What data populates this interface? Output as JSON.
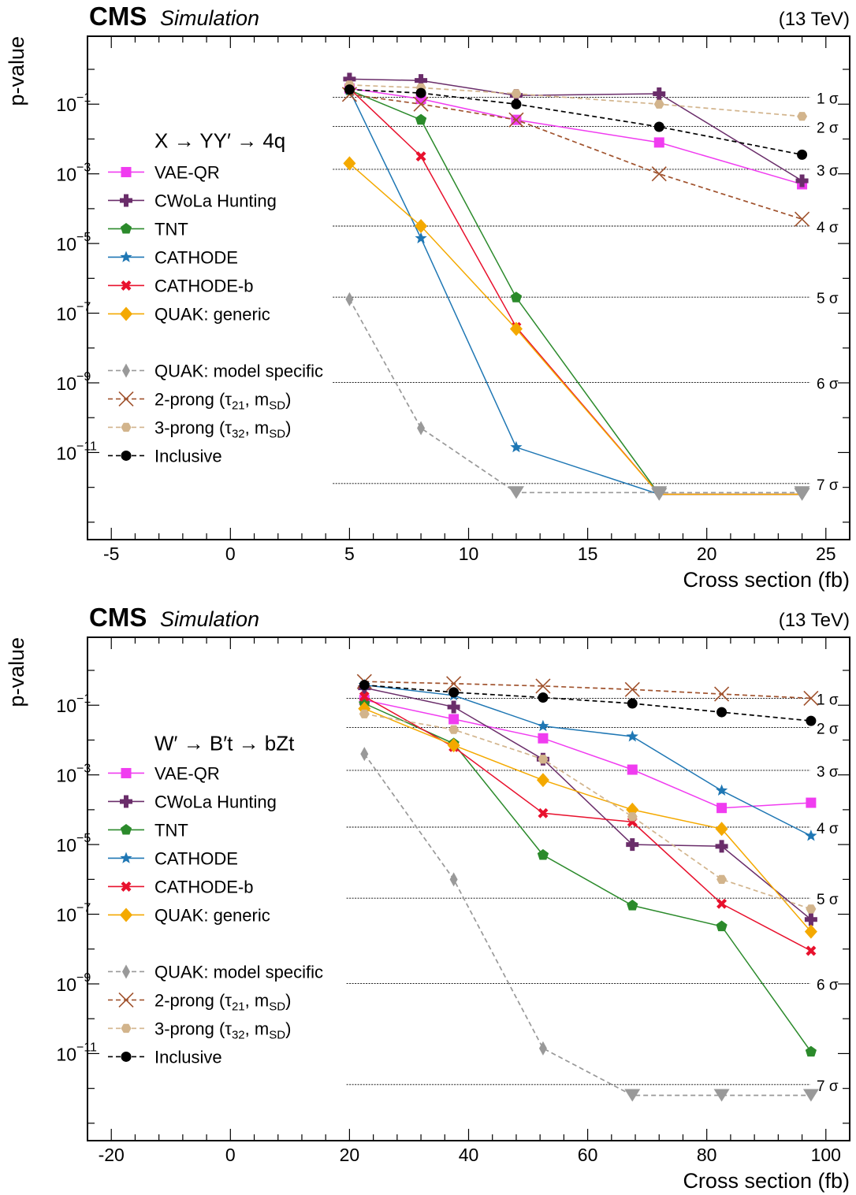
{
  "charts": [
    {
      "id": "top",
      "header": {
        "experiment": "CMS",
        "status": "Simulation",
        "energy": "(13 TeV)"
      },
      "process": "X → YY′ → 4q",
      "xlabel": "Cross section (fb)",
      "ylabel": "p-value",
      "xlim": [
        -6,
        26
      ],
      "ylim_log10": [
        -13.5,
        0.95
      ],
      "xticks": [
        -5,
        0,
        5,
        10,
        15,
        20,
        25
      ],
      "xtick_labels": [
        "-5",
        "0",
        "5",
        "10",
        "15",
        "20",
        "25"
      ],
      "ytick_exps": [
        -1,
        -3,
        -5,
        -7,
        -9,
        -11
      ],
      "ytick_labels": [
        "10",
        "10",
        "10",
        "10",
        "10",
        "10"
      ],
      "ytick_sups": [
        "−1",
        "−3",
        "−5",
        "−7",
        "−9",
        "−11"
      ],
      "sigma_lines": [
        {
          "label": "1 σ",
          "log10p": -0.8
        },
        {
          "label": "2 σ",
          "log10p": -1.64
        },
        {
          "label": "3 σ",
          "log10p": -2.87
        },
        {
          "label": "4 σ",
          "log10p": -4.5
        },
        {
          "label": "5 σ",
          "log10p": -6.54
        },
        {
          "label": "6 σ",
          "log10p": -8.99
        },
        {
          "label": "7 σ",
          "log10p": -11.89
        }
      ],
      "sigma_line_xstart": 4.3,
      "legend": [
        {
          "label": "VAE-QR"
        },
        {
          "label": "CWoLa Hunting"
        },
        {
          "label": "TNT"
        },
        {
          "label": "CATHODE"
        },
        {
          "label": "CATHODE-b"
        },
        {
          "label": "QUAK: generic"
        },
        {
          "label": ""
        },
        {
          "label": "QUAK: model specific"
        },
        {
          "label": "2-prong (τ",
          "sub": "21",
          "mid": ", m",
          "sub2": "SD",
          "end": ")"
        },
        {
          "label": "3-prong (τ",
          "sub": "32",
          "mid": ", m",
          "sub2": "SD",
          "end": ")"
        },
        {
          "label": "Inclusive"
        }
      ],
      "chart_data": {
        "type": "line",
        "yscale": "log",
        "series": [
          {
            "name": "VAE-QR",
            "color": "#f03cf0",
            "dash": "",
            "marker": "square",
            "x": [
              5,
              8,
              12,
              18,
              24
            ],
            "log10p": [
              -0.55,
              -0.85,
              -1.45,
              -2.1,
              -3.3
            ]
          },
          {
            "name": "CWoLa Hunting",
            "color": "#6a2d6a",
            "dash": "",
            "marker": "plus",
            "x": [
              5,
              8,
              12,
              18,
              24
            ],
            "log10p": [
              -0.28,
              -0.32,
              -0.75,
              -0.7,
              -3.2
            ]
          },
          {
            "name": "TNT",
            "color": "#2b8a2b",
            "dash": "",
            "marker": "pentagon",
            "x": [
              5,
              8,
              12,
              18,
              24
            ],
            "log10p": [
              -0.6,
              -1.45,
              -6.55,
              -12.2,
              -12.2
            ]
          },
          {
            "name": "CATHODE",
            "color": "#1f77b4",
            "dash": "",
            "marker": "star",
            "x": [
              5,
              8,
              12,
              18,
              24
            ],
            "log10p": [
              -0.6,
              -4.85,
              -10.85,
              -12.2,
              -12.2
            ]
          },
          {
            "name": "CATHODE-b",
            "color": "#e8112d",
            "dash": "",
            "marker": "x",
            "x": [
              5,
              8,
              12,
              18,
              24
            ],
            "log10p": [
              -0.55,
              -2.5,
              -7.4,
              -12.2,
              -12.2
            ]
          },
          {
            "name": "QUAK: generic",
            "color": "#f4a900",
            "dash": "",
            "marker": "diamond",
            "x": [
              5,
              8,
              12,
              18,
              24
            ],
            "log10p": [
              -2.7,
              -4.5,
              -7.45,
              -12.2,
              -12.2
            ]
          },
          {
            "name": "QUAK: model specific",
            "color": "#999999",
            "dash": "6,4",
            "marker": "thindiamond",
            "x": [
              5,
              8,
              12,
              18,
              24
            ],
            "log10p": [
              -6.6,
              -10.3,
              -12.15,
              -12.15,
              -12.15
            ]
          },
          {
            "name": "2-prong (τ21, mSD)",
            "color": "#a0522d",
            "dash": "6,4",
            "marker": "bigx",
            "x": [
              5,
              8,
              12,
              18,
              24
            ],
            "log10p": [
              -0.72,
              -1.0,
              -1.45,
              -3.0,
              -4.3
            ]
          },
          {
            "name": "3-prong (τ32, mSD)",
            "color": "#d2b48c",
            "dash": "6,4",
            "marker": "hexagon",
            "x": [
              5,
              8,
              12,
              18,
              24
            ],
            "log10p": [
              -0.45,
              -0.53,
              -0.7,
              -1.0,
              -1.35
            ]
          },
          {
            "name": "Inclusive",
            "color": "#000000",
            "dash": "6,4",
            "marker": "circle",
            "x": [
              5,
              8,
              12,
              18,
              24
            ],
            "log10p": [
              -0.58,
              -0.68,
              -1.0,
              -1.65,
              -2.45
            ]
          }
        ]
      }
    },
    {
      "id": "bottom",
      "header": {
        "experiment": "CMS",
        "status": "Simulation",
        "energy": "(13 TeV)"
      },
      "process": "W′ → B′t → bZt",
      "xlabel": "Cross section (fb)",
      "ylabel": "p-value",
      "xlim": [
        -24,
        104
      ],
      "ylim_log10": [
        -13.5,
        0.95
      ],
      "xticks": [
        -20,
        0,
        20,
        40,
        60,
        80,
        100
      ],
      "xtick_labels": [
        "-20",
        "0",
        "20",
        "40",
        "60",
        "80",
        "100"
      ],
      "ytick_exps": [
        -1,
        -3,
        -5,
        -7,
        -9,
        -11
      ],
      "ytick_labels": [
        "10",
        "10",
        "10",
        "10",
        "10",
        "10"
      ],
      "ytick_sups": [
        "−1",
        "−3",
        "−5",
        "−7",
        "−9",
        "−11"
      ],
      "sigma_lines": [
        {
          "label": "1 σ",
          "log10p": -0.8
        },
        {
          "label": "2 σ",
          "log10p": -1.64
        },
        {
          "label": "3 σ",
          "log10p": -2.87
        },
        {
          "label": "4 σ",
          "log10p": -4.5
        },
        {
          "label": "5 σ",
          "log10p": -6.54
        },
        {
          "label": "6 σ",
          "log10p": -8.99
        },
        {
          "label": "7 σ",
          "log10p": -11.89
        }
      ],
      "sigma_line_xstart": 19.5,
      "legend": [
        {
          "label": "VAE-QR"
        },
        {
          "label": "CWoLa Hunting"
        },
        {
          "label": "TNT"
        },
        {
          "label": "CATHODE"
        },
        {
          "label": "CATHODE-b"
        },
        {
          "label": "QUAK: generic"
        },
        {
          "label": ""
        },
        {
          "label": "QUAK: model specific"
        },
        {
          "label": "2-prong (τ",
          "sub": "21",
          "mid": ", m",
          "sub2": "SD",
          "end": ")"
        },
        {
          "label": "3-prong (τ",
          "sub": "32",
          "mid": ", m",
          "sub2": "SD",
          "end": ")"
        },
        {
          "label": "Inclusive"
        }
      ],
      "chart_data": {
        "type": "line",
        "yscale": "log",
        "series": [
          {
            "name": "VAE-QR",
            "color": "#f03cf0",
            "dash": "",
            "marker": "square",
            "x": [
              22.5,
              37.5,
              52.5,
              67.5,
              82.5,
              97.5
            ],
            "log10p": [
              -0.85,
              -1.4,
              -1.95,
              -2.85,
              -3.95,
              -3.8
            ]
          },
          {
            "name": "CWoLa Hunting",
            "color": "#6a2d6a",
            "dash": "",
            "marker": "plus",
            "x": [
              22.5,
              37.5,
              52.5,
              67.5,
              82.5,
              97.5
            ],
            "log10p": [
              -0.5,
              -1.05,
              -2.55,
              -5.0,
              -5.05,
              -7.15
            ]
          },
          {
            "name": "TNT",
            "color": "#2b8a2b",
            "dash": "",
            "marker": "pentagon",
            "x": [
              22.5,
              37.5,
              52.5,
              67.5,
              82.5,
              97.5
            ],
            "log10p": [
              -0.95,
              -2.1,
              -5.3,
              -6.75,
              -7.35,
              -10.95
            ]
          },
          {
            "name": "CATHODE",
            "color": "#1f77b4",
            "dash": "",
            "marker": "star",
            "x": [
              22.5,
              37.5,
              52.5,
              67.5,
              82.5,
              97.5
            ],
            "log10p": [
              -0.42,
              -0.72,
              -1.6,
              -1.9,
              -3.45,
              -4.75
            ]
          },
          {
            "name": "CATHODE-b",
            "color": "#e8112d",
            "dash": "",
            "marker": "x",
            "x": [
              22.5,
              37.5,
              52.5,
              67.5,
              82.5,
              97.5
            ],
            "log10p": [
              -0.75,
              -2.2,
              -4.1,
              -4.35,
              -6.7,
              -8.05
            ]
          },
          {
            "name": "QUAK: generic",
            "color": "#f4a900",
            "dash": "",
            "marker": "diamond",
            "x": [
              22.5,
              37.5,
              52.5,
              67.5,
              82.5,
              97.5
            ],
            "log10p": [
              -1.1,
              -2.15,
              -3.15,
              -4.0,
              -4.55,
              -7.5
            ]
          },
          {
            "name": "QUAK: model specific",
            "color": "#999999",
            "dash": "6,4",
            "marker": "thindiamond",
            "x": [
              22.5,
              37.5,
              52.5,
              67.5,
              82.5,
              97.5
            ],
            "log10p": [
              -2.4,
              -6.0,
              -10.85,
              -12.2,
              -12.2,
              -12.2
            ]
          },
          {
            "name": "2-prong (τ21, mSD)",
            "color": "#a0522d",
            "dash": "6,4",
            "marker": "bigx",
            "x": [
              22.5,
              37.5,
              52.5,
              67.5,
              82.5,
              97.5
            ],
            "log10p": [
              -0.32,
              -0.38,
              -0.45,
              -0.55,
              -0.68,
              -0.8
            ]
          },
          {
            "name": "3-prong (τ32, mSD)",
            "color": "#d2b48c",
            "dash": "6,4",
            "marker": "hexagon",
            "x": [
              22.5,
              37.5,
              52.5,
              67.5,
              82.5,
              97.5
            ],
            "log10p": [
              -1.25,
              -1.7,
              -2.55,
              -4.2,
              -6.0,
              -6.85
            ]
          },
          {
            "name": "Inclusive",
            "color": "#000000",
            "dash": "6,4",
            "marker": "circle",
            "x": [
              22.5,
              37.5,
              52.5,
              67.5,
              82.5,
              97.5
            ],
            "log10p": [
              -0.42,
              -0.63,
              -0.78,
              -0.95,
              -1.2,
              -1.45
            ]
          }
        ]
      }
    }
  ]
}
